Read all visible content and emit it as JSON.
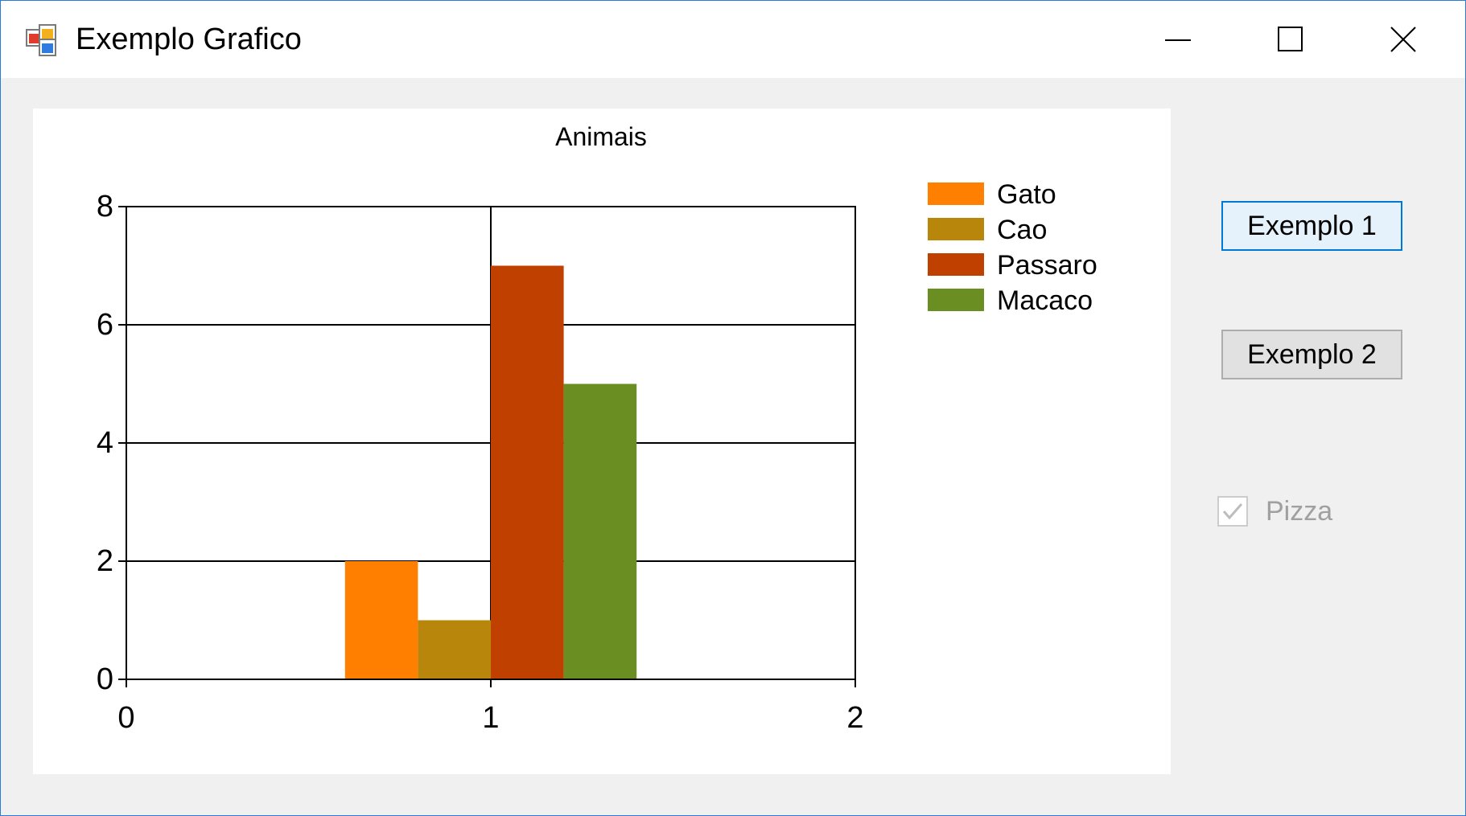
{
  "window": {
    "title": "Exemplo Grafico",
    "icon": "winforms-app-icon",
    "controls": {
      "minimize": "minimize-icon",
      "maximize": "maximize-icon",
      "close": "close-icon"
    }
  },
  "sidebar": {
    "button1_label": "Exemplo 1",
    "button2_label": "Exemplo 2",
    "checkbox_label": "Pizza",
    "checkbox_checked": true,
    "checkbox_enabled": false
  },
  "chart_data": {
    "type": "bar",
    "title": "Animais",
    "xlabel": "",
    "ylabel": "",
    "xlim": [
      0,
      2
    ],
    "ylim": [
      0,
      8
    ],
    "x_ticks": [
      "0",
      "1",
      "2"
    ],
    "y_ticks": [
      "0",
      "2",
      "4",
      "6",
      "8"
    ],
    "grid": true,
    "legend_position": "top-right",
    "categories": [
      "1"
    ],
    "series": [
      {
        "name": "Gato",
        "values": [
          2
        ],
        "color": "#ff8000"
      },
      {
        "name": "Cao",
        "values": [
          1
        ],
        "color": "#b8860b"
      },
      {
        "name": "Passaro",
        "values": [
          7
        ],
        "color": "#c04000"
      },
      {
        "name": "Macaco",
        "values": [
          5
        ],
        "color": "#6b8e23"
      }
    ]
  }
}
